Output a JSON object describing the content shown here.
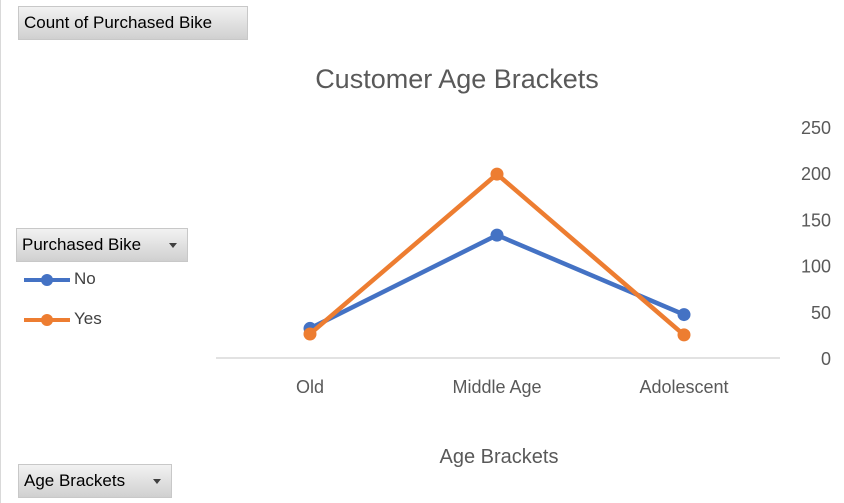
{
  "pivot_fields": {
    "values_field": "Count of Purchased Bike",
    "legend_field": "Purchased Bike",
    "axis_field": "Age Brackets"
  },
  "chart_data": {
    "type": "line",
    "title": "Customer Age Brackets",
    "xlabel": "Age Brackets",
    "ylabel": "",
    "categories": [
      "Old",
      "Middle Age",
      "Adolescent"
    ],
    "series": [
      {
        "name": "No",
        "color": "#4472C4",
        "values": [
          32,
          133,
          47
        ]
      },
      {
        "name": "Yes",
        "color": "#ED7D31",
        "values": [
          26,
          199,
          25
        ]
      }
    ],
    "ylim": [
      0,
      250
    ],
    "yticks": [
      "0",
      "50",
      "100",
      "150",
      "200",
      "250"
    ],
    "y_axis_side": "right",
    "grid": false,
    "legend_position": "left"
  }
}
